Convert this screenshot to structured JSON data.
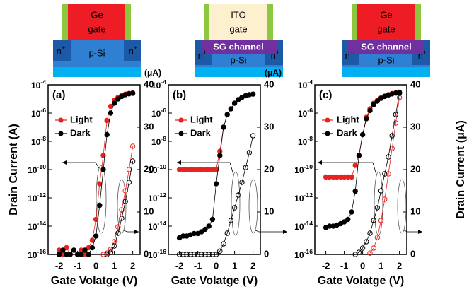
{
  "schematics": [
    {
      "gate": [
        "Ge",
        "gate"
      ],
      "body": "p-Si",
      "source": "n+",
      "drain": "n+"
    },
    {
      "gate": [
        "ITO",
        "gate"
      ],
      "channel": "SG channel",
      "body": "p-Si",
      "source": "n+",
      "drain": "n+"
    },
    {
      "gate": [
        "Ge",
        "gate"
      ],
      "channel": "SG channel",
      "body": "p-Si",
      "source": "n+",
      "drain": "n+"
    }
  ],
  "chart_data": [
    {
      "type": "line",
      "panel_label": "(a)",
      "xlabel": "Gate Volatge (V)",
      "ylabel": "Drain Current (A)",
      "y2unit": "(μA)",
      "x": [
        -2,
        -1.8,
        -1.6,
        -1.4,
        -1.2,
        -1,
        -0.8,
        -0.6,
        -0.4,
        -0.2,
        0,
        0.2,
        0.4,
        0.6,
        0.8,
        1,
        1.2,
        1.4,
        1.6,
        1.8,
        2
      ],
      "xlim": [
        -2.6,
        2.4
      ],
      "xticks": [
        -2,
        -1,
        0,
        1,
        2
      ],
      "yscale": "log",
      "ylim": [
        1e-16,
        0.0001
      ],
      "yticks": [
        {
          "value": 1e-16,
          "label": "10-16"
        },
        {
          "value": 1e-14,
          "label": "10-14"
        },
        {
          "value": 1e-12,
          "label": "10-12"
        },
        {
          "value": 1e-10,
          "label": "10-10"
        },
        {
          "value": 1e-08,
          "label": "10-8"
        },
        {
          "value": 1e-06,
          "label": "10-6"
        },
        {
          "value": 0.0001,
          "label": "10-4"
        }
      ],
      "y2lim": [
        0,
        40
      ],
      "y2ticks": [
        0,
        10,
        20,
        30,
        40
      ],
      "legend": "left",
      "series": [
        {
          "name": "Light",
          "color": "#e8231f",
          "values": [
            2e-16,
            1e-16,
            3e-16,
            1e-16,
            2e-16,
            1e-16,
            2e-16,
            1e-16,
            3e-16,
            1e-15,
            3e-14,
            1e-11,
            1e-09,
            3e-07,
            3e-06,
            8e-06,
            1.3e-05,
            1.8e-05,
            2.2e-05,
            2.5e-05,
            2.7e-05
          ]
        },
        {
          "name": "Dark",
          "color": "#000000",
          "values": [
            1e-16,
            2e-16,
            1e-16,
            1e-16,
            2e-16,
            1e-16,
            1e-16,
            2e-16,
            1e-16,
            3e-16,
            2e-15,
            3e-13,
            1e-10,
            3e-08,
            1e-06,
            5e-06,
            1e-05,
            1.5e-05,
            2e-05,
            2.3e-05,
            2.5e-05
          ]
        },
        {
          "axis": "y2",
          "color": "#e8231f",
          "values": [
            null,
            null,
            null,
            null,
            null,
            null,
            null,
            null,
            null,
            null,
            null,
            null,
            0,
            0.3,
            1.2,
            3,
            6.5,
            10.5,
            15,
            20,
            25.5
          ]
        },
        {
          "axis": "y2",
          "color": "#000000",
          "values": [
            null,
            null,
            null,
            null,
            null,
            null,
            null,
            null,
            null,
            null,
            null,
            null,
            null,
            0,
            0.5,
            2,
            5,
            8.5,
            12.5,
            17,
            22
          ]
        }
      ]
    },
    {
      "type": "line",
      "panel_label": "(b)",
      "xlabel": "Gate Volatge (V)",
      "y2unit": "(μA)",
      "x": [
        -2,
        -1.8,
        -1.6,
        -1.4,
        -1.2,
        -1,
        -0.8,
        -0.6,
        -0.4,
        -0.2,
        0,
        0.2,
        0.4,
        0.6,
        0.8,
        1,
        1.2,
        1.4,
        1.6,
        1.8,
        2
      ],
      "xlim": [
        -2.6,
        2.4
      ],
      "xticks": [
        -2,
        -1,
        0,
        1,
        2
      ],
      "yscale": "log",
      "ylim": [
        1e-16,
        0.0001
      ],
      "yticks": [
        {
          "value": 1e-16,
          "label": "10-16"
        },
        {
          "value": 1e-14,
          "label": "10-14"
        },
        {
          "value": 1e-12,
          "label": "10-12"
        },
        {
          "value": 1e-10,
          "label": "10-10"
        },
        {
          "value": 1e-08,
          "label": "10-8"
        },
        {
          "value": 1e-06,
          "label": "10-6"
        },
        {
          "value": 0.0001,
          "label": "10-4"
        }
      ],
      "y2lim": [
        0,
        40
      ],
      "y2ticks": [
        0,
        10,
        20,
        30,
        40
      ],
      "legend": "left",
      "series": [
        {
          "name": "Light",
          "color": "#e8231f",
          "values": [
            1e-10,
            1e-10,
            1e-10,
            1e-10,
            1e-10,
            1e-10,
            1e-10,
            1e-10,
            1e-10,
            1e-10,
            1e-10,
            2e-09,
            1e-07,
            8e-07,
            2e-06,
            5e-06,
            9e-06,
            1.3e-05,
            1.7e-05,
            2e-05,
            2.2e-05
          ]
        },
        {
          "name": "Dark",
          "color": "#000000",
          "values": [
            1.5e-15,
            2e-15,
            2e-15,
            2.5e-15,
            3e-15,
            3e-15,
            4e-15,
            6e-15,
            1e-14,
            3e-14,
            1e-11,
            1e-09,
            1e-07,
            8e-07,
            2e-06,
            5e-06,
            9e-06,
            1.3e-05,
            1.7e-05,
            2e-05,
            2.2e-05
          ]
        },
        {
          "axis": "y2",
          "color": "#000000",
          "values": [
            0,
            0,
            0,
            0,
            0,
            0,
            0,
            0,
            0,
            0,
            0,
            0.8,
            2.5,
            5,
            8,
            11,
            14,
            17,
            20.5,
            24,
            28
          ]
        }
      ]
    },
    {
      "type": "line",
      "panel_label": "(c)",
      "xlabel": "Gate Volatge (V)",
      "y2label": "Drain Current (μA)",
      "x": [
        -2,
        -1.8,
        -1.6,
        -1.4,
        -1.2,
        -1,
        -0.8,
        -0.6,
        -0.4,
        -0.2,
        0,
        0.2,
        0.4,
        0.6,
        0.8,
        1,
        1.2,
        1.4,
        1.6,
        1.8,
        2
      ],
      "xlim": [
        -2.6,
        2.4
      ],
      "xticks": [
        -2,
        -1,
        0,
        1,
        2
      ],
      "yscale": "log",
      "ylim": [
        1e-16,
        0.0001
      ],
      "yticks": [
        {
          "value": 1e-16,
          "label": "10-16"
        },
        {
          "value": 1e-14,
          "label": "10-14"
        },
        {
          "value": 1e-12,
          "label": "10-12"
        },
        {
          "value": 1e-10,
          "label": "10-10"
        },
        {
          "value": 1e-08,
          "label": "10-8"
        },
        {
          "value": 1e-06,
          "label": "10-6"
        },
        {
          "value": 0.0001,
          "label": "10-4"
        }
      ],
      "y2lim": [
        0,
        40
      ],
      "y2ticks": [
        0,
        10,
        20,
        30,
        40
      ],
      "legend": "left",
      "series": [
        {
          "name": "Light",
          "color": "#e8231f",
          "values": [
            3e-11,
            3e-11,
            3e-11,
            3e-11,
            3e-11,
            3e-11,
            3e-11,
            3e-11,
            2e-10,
            1e-09,
            3e-08,
            5e-07,
            2e-06,
            5e-06,
            8e-06,
            1.2e-05,
            1.6e-05,
            2e-05,
            2.4e-05,
            2.7e-05,
            3e-05
          ]
        },
        {
          "name": "Dark",
          "color": "#000000",
          "values": [
            8e-15,
            1e-14,
            1e-14,
            1.2e-14,
            1.5e-14,
            2e-14,
            3e-14,
            1e-13,
            3e-12,
            1e-09,
            3e-08,
            4e-07,
            1.5e-06,
            4e-06,
            7e-06,
            1.1e-05,
            1.5e-05,
            1.9e-05,
            2.3e-05,
            2.6e-05,
            2.9e-05
          ]
        },
        {
          "axis": "y2",
          "color": "#e8231f",
          "values": [
            null,
            null,
            null,
            null,
            null,
            null,
            null,
            null,
            null,
            null,
            null,
            null,
            0.3,
            1.5,
            4,
            8,
            13,
            19,
            25,
            31,
            37
          ]
        },
        {
          "axis": "y2",
          "color": "#000000",
          "values": [
            null,
            null,
            null,
            null,
            null,
            null,
            null,
            null,
            0,
            0.5,
            1.5,
            3,
            5,
            8,
            11,
            15,
            19,
            23,
            28,
            33,
            38
          ]
        }
      ]
    }
  ]
}
